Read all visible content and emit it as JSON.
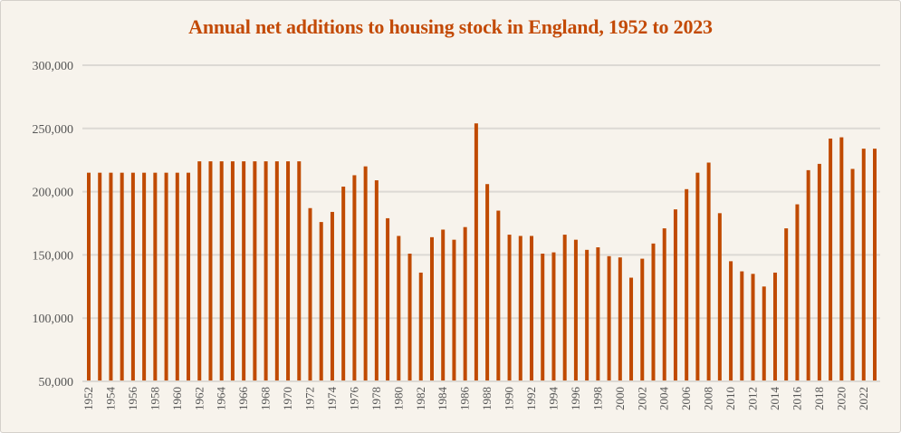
{
  "chart_data": {
    "type": "bar",
    "title": "Annual net additions to housing stock in England, 1952 to 2023",
    "xlabel": "",
    "ylabel": "",
    "ylim": [
      50000,
      300000
    ],
    "yticks": [
      "50,000",
      "100,000",
      "150,000",
      "200,000",
      "250,000",
      "300,000"
    ],
    "ytick_values": [
      50000,
      100000,
      150000,
      200000,
      250000,
      300000
    ],
    "grid": true,
    "bar_color": "#c04a00",
    "categories": [
      "1952",
      "1953",
      "1954",
      "1955",
      "1956",
      "1957",
      "1958",
      "1959",
      "1960",
      "1961",
      "1962",
      "1963",
      "1964",
      "1965",
      "1966",
      "1967",
      "1968",
      "1969",
      "1970",
      "1971",
      "1972",
      "1973",
      "1974",
      "1975",
      "1976",
      "1977",
      "1978",
      "1979",
      "1980",
      "1981",
      "1982",
      "1983",
      "1984",
      "1985",
      "1986",
      "1987",
      "1988",
      "1989",
      "1990",
      "1991",
      "1992",
      "1993",
      "1994",
      "1995",
      "1996",
      "1997",
      "1998",
      "1999",
      "2000",
      "2001",
      "2002",
      "2003",
      "2004",
      "2005",
      "2006",
      "2007",
      "2008",
      "2009",
      "2010",
      "2011",
      "2012",
      "2013",
      "2014",
      "2015",
      "2016",
      "2017",
      "2018",
      "2019",
      "2020",
      "2021",
      "2022",
      "2023"
    ],
    "x_tick_labels": [
      "1952",
      "1954",
      "1956",
      "1958",
      "1960",
      "1962",
      "1964",
      "1966",
      "1968",
      "1970",
      "1972",
      "1974",
      "1976",
      "1978",
      "1980",
      "1982",
      "1984",
      "1986",
      "1988",
      "1990",
      "1992",
      "1994",
      "1996",
      "1998",
      "2000",
      "2002",
      "2004",
      "2006",
      "2008",
      "2010",
      "2012",
      "2014",
      "2016",
      "2018",
      "2020",
      "2022"
    ],
    "values": [
      215000,
      215000,
      215000,
      215000,
      215000,
      215000,
      215000,
      215000,
      215000,
      215000,
      224000,
      224000,
      224000,
      224000,
      224000,
      224000,
      224000,
      224000,
      224000,
      224000,
      187000,
      176000,
      184000,
      204000,
      213000,
      220000,
      209000,
      179000,
      165000,
      151000,
      136000,
      164000,
      170000,
      162000,
      172000,
      254000,
      206000,
      185000,
      166000,
      165000,
      165000,
      151000,
      152000,
      166000,
      162000,
      154000,
      156000,
      149000,
      148000,
      132000,
      147000,
      159000,
      171000,
      186000,
      202000,
      215000,
      223000,
      183000,
      145000,
      137000,
      135000,
      125000,
      136000,
      171000,
      190000,
      217000,
      222000,
      242000,
      243000,
      218000,
      234000,
      234000
    ]
  }
}
